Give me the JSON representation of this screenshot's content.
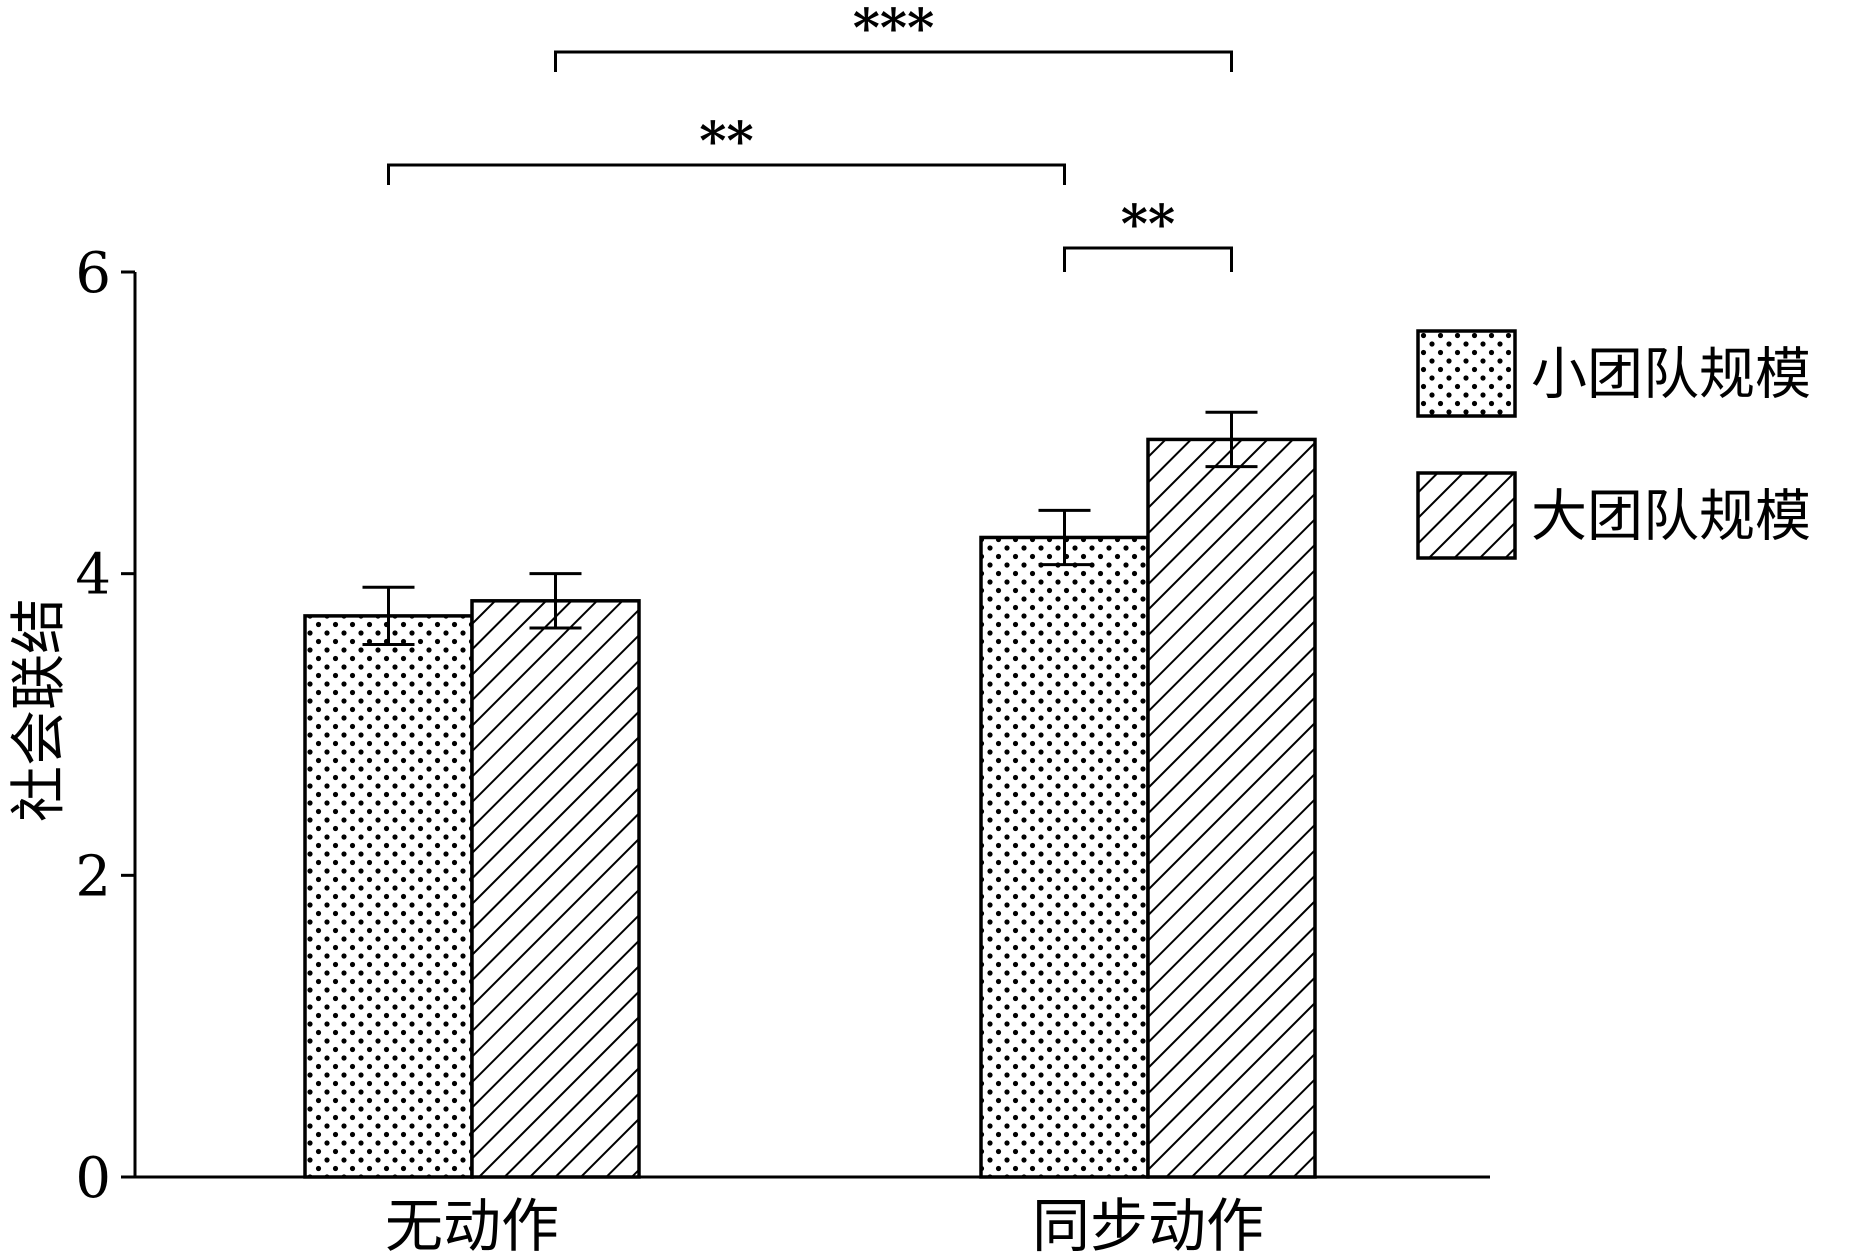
{
  "chart_data": {
    "type": "bar",
    "categories": [
      "无动作",
      "同步动作"
    ],
    "series": [
      {
        "name": "小团队规模",
        "pattern": "dots",
        "values": [
          3.72,
          4.24
        ],
        "errors": [
          0.19,
          0.18
        ]
      },
      {
        "name": "大团队规模",
        "pattern": "hatch",
        "values": [
          3.82,
          4.89
        ],
        "errors": [
          0.18,
          0.18
        ]
      }
    ],
    "ylabel": "社会联结",
    "xlabel": "",
    "title": "",
    "ylim": [
      0,
      6
    ],
    "yticks": [
      0,
      2,
      4,
      6
    ],
    "legend": {
      "position": "top-right"
    },
    "grid": false,
    "significance": [
      {
        "label": "***",
        "from": {
          "category": 0,
          "series": 1
        },
        "to": {
          "category": 1,
          "series": 1
        }
      },
      {
        "label": "**",
        "from": {
          "category": 0,
          "series": 0
        },
        "to": {
          "category": 1,
          "series": 0
        }
      },
      {
        "label": "**",
        "from": {
          "category": 1,
          "series": 0
        },
        "to": {
          "category": 1,
          "series": 1
        }
      }
    ],
    "colors": {
      "axis": "#000000",
      "bar_fill": "#ffffff",
      "mark": "#000000"
    }
  }
}
